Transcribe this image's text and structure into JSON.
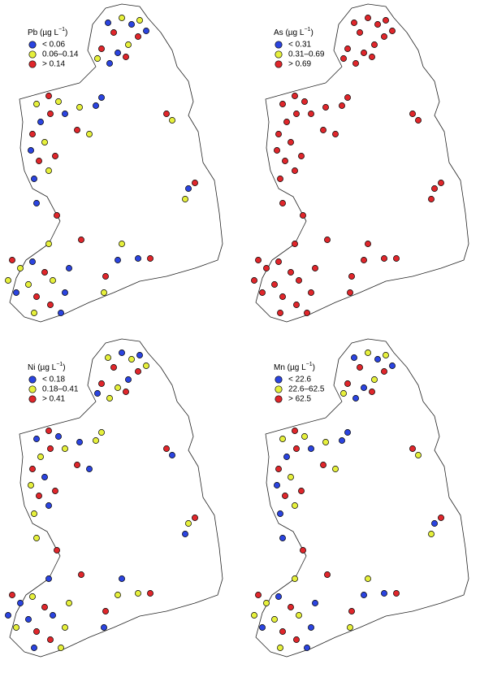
{
  "panels": [
    {
      "title": "Pb (µg L",
      "title_exponent": "−1",
      "title_close": ")",
      "legend": [
        {
          "label": "< 0.06",
          "color": "#2b44e0"
        },
        {
          "label": "0.06–0.14",
          "color": "#e6f03c"
        },
        {
          "label": "> 0.14",
          "color": "#e0262b"
        }
      ]
    },
    {
      "title": "As (µg L",
      "title_exponent": "−1",
      "title_close": ")",
      "legend": [
        {
          "label": "< 0.31",
          "color": "#2b44e0"
        },
        {
          "label": "0.31–0.69",
          "color": "#e6f03c"
        },
        {
          "label": "> 0.69",
          "color": "#e0262b"
        }
      ]
    },
    {
      "title": "Ni (µg L",
      "title_exponent": "−1",
      "title_close": ")",
      "legend": [
        {
          "label": "< 0.18",
          "color": "#2b44e0"
        },
        {
          "label": "0.18–0.41",
          "color": "#e6f03c"
        },
        {
          "label": "> 0.41",
          "color": "#e0262b"
        }
      ]
    },
    {
      "title": "Mn (µg L",
      "title_exponent": "−1",
      "title_close": ")",
      "legend": [
        {
          "label": "< 22.6",
          "color": "#2b44e0"
        },
        {
          "label": "22.6–62.5",
          "color": "#e6f03c"
        },
        {
          "label": "> 62.5",
          "color": "#e0262b"
        }
      ]
    }
  ]
}
